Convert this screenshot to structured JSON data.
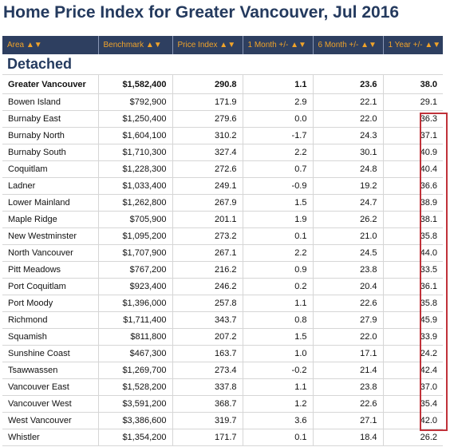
{
  "title": "Home Price Index for Greater Vancouver, Jul 2016",
  "columns": [
    "Area ▲▼",
    "Benchmark ▲▼",
    "Price Index ▲▼",
    "1 Month +/- ▲▼",
    "6 Month +/- ▲▼",
    "1 Year +/- ▲▼"
  ],
  "section": "Detached",
  "total": {
    "area": "Greater Vancouver",
    "benchmark": "$1,582,400",
    "index": "290.8",
    "m1": "1.1",
    "m6": "23.6",
    "y1": "38.0"
  },
  "rows": [
    {
      "area": "Bowen Island",
      "benchmark": "$792,900",
      "index": "171.9",
      "m1": "2.9",
      "m6": "22.1",
      "y1": "29.1"
    },
    {
      "area": "Burnaby East",
      "benchmark": "$1,250,400",
      "index": "279.6",
      "m1": "0.0",
      "m6": "22.0",
      "y1": "36.3"
    },
    {
      "area": "Burnaby North",
      "benchmark": "$1,604,100",
      "index": "310.2",
      "m1": "-1.7",
      "m6": "24.3",
      "y1": "37.1"
    },
    {
      "area": "Burnaby South",
      "benchmark": "$1,710,300",
      "index": "327.4",
      "m1": "2.2",
      "m6": "30.1",
      "y1": "40.9"
    },
    {
      "area": "Coquitlam",
      "benchmark": "$1,228,300",
      "index": "272.6",
      "m1": "0.7",
      "m6": "24.8",
      "y1": "40.4"
    },
    {
      "area": "Ladner",
      "benchmark": "$1,033,400",
      "index": "249.1",
      "m1": "-0.9",
      "m6": "19.2",
      "y1": "36.6"
    },
    {
      "area": "Lower Mainland",
      "benchmark": "$1,262,800",
      "index": "267.9",
      "m1": "1.5",
      "m6": "24.7",
      "y1": "38.9"
    },
    {
      "area": "Maple Ridge",
      "benchmark": "$705,900",
      "index": "201.1",
      "m1": "1.9",
      "m6": "26.2",
      "y1": "38.1"
    },
    {
      "area": "New Westminster",
      "benchmark": "$1,095,200",
      "index": "273.2",
      "m1": "0.1",
      "m6": "21.0",
      "y1": "35.8"
    },
    {
      "area": "North Vancouver",
      "benchmark": "$1,707,900",
      "index": "267.1",
      "m1": "2.2",
      "m6": "24.5",
      "y1": "44.0"
    },
    {
      "area": "Pitt Meadows",
      "benchmark": "$767,200",
      "index": "216.2",
      "m1": "0.9",
      "m6": "23.8",
      "y1": "33.5"
    },
    {
      "area": "Port Coquitlam",
      "benchmark": "$923,400",
      "index": "246.2",
      "m1": "0.2",
      "m6": "20.4",
      "y1": "36.1"
    },
    {
      "area": "Port Moody",
      "benchmark": "$1,396,000",
      "index": "257.8",
      "m1": "1.1",
      "m6": "22.6",
      "y1": "35.8"
    },
    {
      "area": "Richmond",
      "benchmark": "$1,711,400",
      "index": "343.7",
      "m1": "0.8",
      "m6": "27.9",
      "y1": "45.9"
    },
    {
      "area": "Squamish",
      "benchmark": "$811,800",
      "index": "207.2",
      "m1": "1.5",
      "m6": "22.0",
      "y1": "33.9"
    },
    {
      "area": "Sunshine Coast",
      "benchmark": "$467,300",
      "index": "163.7",
      "m1": "1.0",
      "m6": "17.1",
      "y1": "24.2"
    },
    {
      "area": "Tsawwassen",
      "benchmark": "$1,269,700",
      "index": "273.4",
      "m1": "-0.2",
      "m6": "21.4",
      "y1": "42.4"
    },
    {
      "area": "Vancouver East",
      "benchmark": "$1,528,200",
      "index": "337.8",
      "m1": "1.1",
      "m6": "23.8",
      "y1": "37.0"
    },
    {
      "area": "Vancouver West",
      "benchmark": "$3,591,200",
      "index": "368.7",
      "m1": "1.2",
      "m6": "22.6",
      "y1": "35.4"
    },
    {
      "area": "West Vancouver",
      "benchmark": "$3,386,600",
      "index": "319.7",
      "m1": "3.6",
      "m6": "27.1",
      "y1": "42.0"
    },
    {
      "area": "Whistler",
      "benchmark": "$1,354,200",
      "index": "171.7",
      "m1": "0.1",
      "m6": "18.4",
      "y1": "26.2"
    }
  ]
}
